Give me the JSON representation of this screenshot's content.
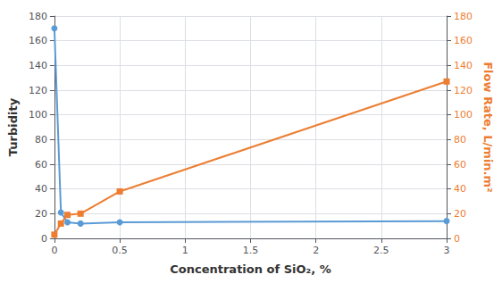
{
  "chart_data": {
    "type": "line",
    "xlabel": "Concentration of SiO₂, %",
    "ylabel": "Turbidity",
    "y2label": "Flow Rate, L/min.m²",
    "x": [
      0,
      0.05,
      0.1,
      0.2,
      0.5,
      3.0
    ],
    "series": [
      {
        "color": "#5B9BD5",
        "marker": "circle",
        "values": [
          170,
          21,
          13,
          12,
          13,
          14
        ]
      },
      {
        "color": "#ED7D31",
        "marker": "square",
        "axis": "y2",
        "values": [
          3,
          12,
          19,
          20,
          38,
          127
        ]
      }
    ],
    "xlim": [
      0,
      3.0
    ],
    "xticks": [
      0,
      0.5,
      1,
      1.5,
      2,
      2.5,
      3
    ],
    "ylim": [
      0,
      180
    ],
    "yticks": [
      0,
      20,
      40,
      60,
      80,
      100,
      120,
      140,
      160,
      180
    ],
    "y2lim": [
      0,
      180
    ],
    "y2ticks": [
      0,
      20,
      40,
      60,
      80,
      100,
      120,
      140,
      160,
      180
    ],
    "grid": true
  }
}
